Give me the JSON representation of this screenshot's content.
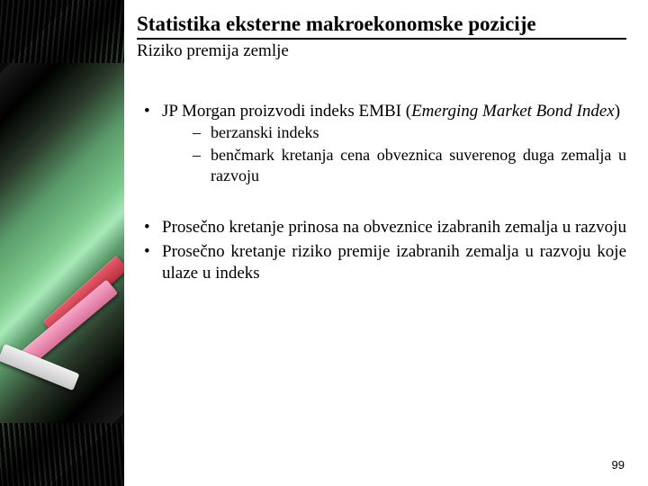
{
  "title": "Statistika eksterne makroekonomske pozicije",
  "subtitle": "Riziko premija zemlje",
  "group1": {
    "b1_pre": "JP Morgan proizvodi indeks EMBI (",
    "b1_ital": "Emerging Market Bond Index",
    "b1_post": ")",
    "s1": "berzanski indeks",
    "s2": "benčmark kretanja cena obveznica suverenog duga zemalja u razvoju"
  },
  "group2": {
    "b1": "Prosečno kretanje prinosa na obveznice izabranih zemalja u razvoju",
    "b2": "Prosečno kretanje riziko premije izabranih zemalja u razvoju koje ulaze u indeks"
  },
  "page_number": "99",
  "colors": {
    "text": "#000000",
    "background": "#ffffff",
    "band_dark": "#0a0a0a",
    "band_green": "#7cc98c",
    "chalk_red": "#e85a6a",
    "chalk_pink": "#f8a8c8",
    "chalk_white": "#f0f0f0"
  }
}
